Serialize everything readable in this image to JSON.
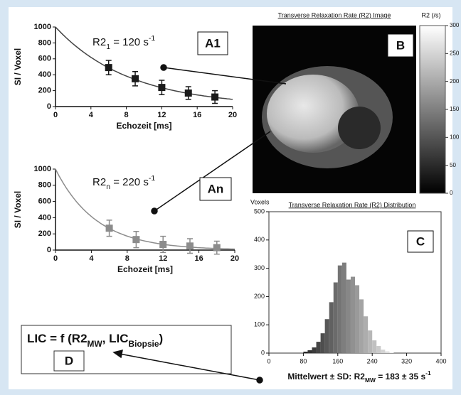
{
  "chart_data": [
    {
      "type": "scatter",
      "panel": "A1",
      "x": [
        6,
        9,
        12,
        15,
        18
      ],
      "values": [
        490,
        350,
        240,
        170,
        120
      ],
      "errors": [
        90,
        90,
        90,
        80,
        80
      ],
      "color": "#1a1a1a",
      "curve_color": "#444444",
      "fit": {
        "symbol": "R2",
        "subscript": "1",
        "text": " = 120 s",
        "superscript": "-1",
        "rate": 120
      },
      "xlabel": "Echozeit [ms]",
      "ylabel": "SI / Voxel",
      "xlim": [
        0,
        20
      ],
      "xticks": [
        0,
        4,
        8,
        12,
        16,
        20
      ],
      "ylim": [
        0,
        1000
      ],
      "yticks": [
        0,
        200,
        400,
        600,
        800,
        1000
      ]
    },
    {
      "type": "scatter",
      "panel": "An",
      "x": [
        6,
        9,
        12,
        15,
        18
      ],
      "values": [
        270,
        130,
        70,
        50,
        30
      ],
      "errors": [
        100,
        100,
        100,
        90,
        80
      ],
      "color": "#8c8c8c",
      "curve_color": "#8c8c8c",
      "fit": {
        "symbol": "R2",
        "subscript": "n",
        "text": " = 220 s",
        "superscript": "-1",
        "rate": 220
      },
      "xlabel": "Echozeit [ms]",
      "ylabel": "SI / Voxel",
      "xlim": [
        0,
        20
      ],
      "xticks": [
        0,
        4,
        8,
        12,
        16,
        20
      ],
      "ylim": [
        0,
        1000
      ],
      "yticks": [
        0,
        200,
        400,
        600,
        800,
        1000
      ]
    },
    {
      "type": "histogram",
      "panel": "C",
      "title": "Transverse Relaxation Rate (R2) Distribution",
      "ylabel": "Voxels",
      "bins": [
        80,
        90,
        100,
        110,
        120,
        130,
        140,
        150,
        160,
        170,
        180,
        190,
        200,
        210,
        220,
        230,
        240,
        250,
        260,
        270,
        280,
        290
      ],
      "counts": [
        5,
        10,
        20,
        40,
        70,
        120,
        180,
        250,
        310,
        320,
        260,
        270,
        240,
        190,
        130,
        80,
        45,
        25,
        12,
        6,
        2
      ],
      "xlim": [
        0,
        400
      ],
      "xticks": [
        0,
        80,
        160,
        240,
        320,
        400
      ],
      "ylim": [
        0,
        500
      ],
      "yticks": [
        0,
        100,
        200,
        300,
        400,
        500
      ],
      "caption": {
        "text": "Mittelwert ± SD:  R2",
        "subscript": "MW",
        "text2": " = 183 ± 35 s",
        "superscript": "-1"
      }
    }
  ],
  "image_panel": {
    "title": "Transverse Relaxation Rate (R2) Image",
    "label": "B",
    "colorbar_label": "R2 (/s)",
    "colorbar_lim": [
      0,
      300
    ],
    "colorbar_ticks": [
      0,
      50,
      100,
      150,
      200,
      250,
      300
    ]
  },
  "formula_panel": {
    "parts": [
      "LIC = f (R2",
      "MW",
      ", LIC",
      "Biopsie",
      ")"
    ],
    "label": "D"
  }
}
